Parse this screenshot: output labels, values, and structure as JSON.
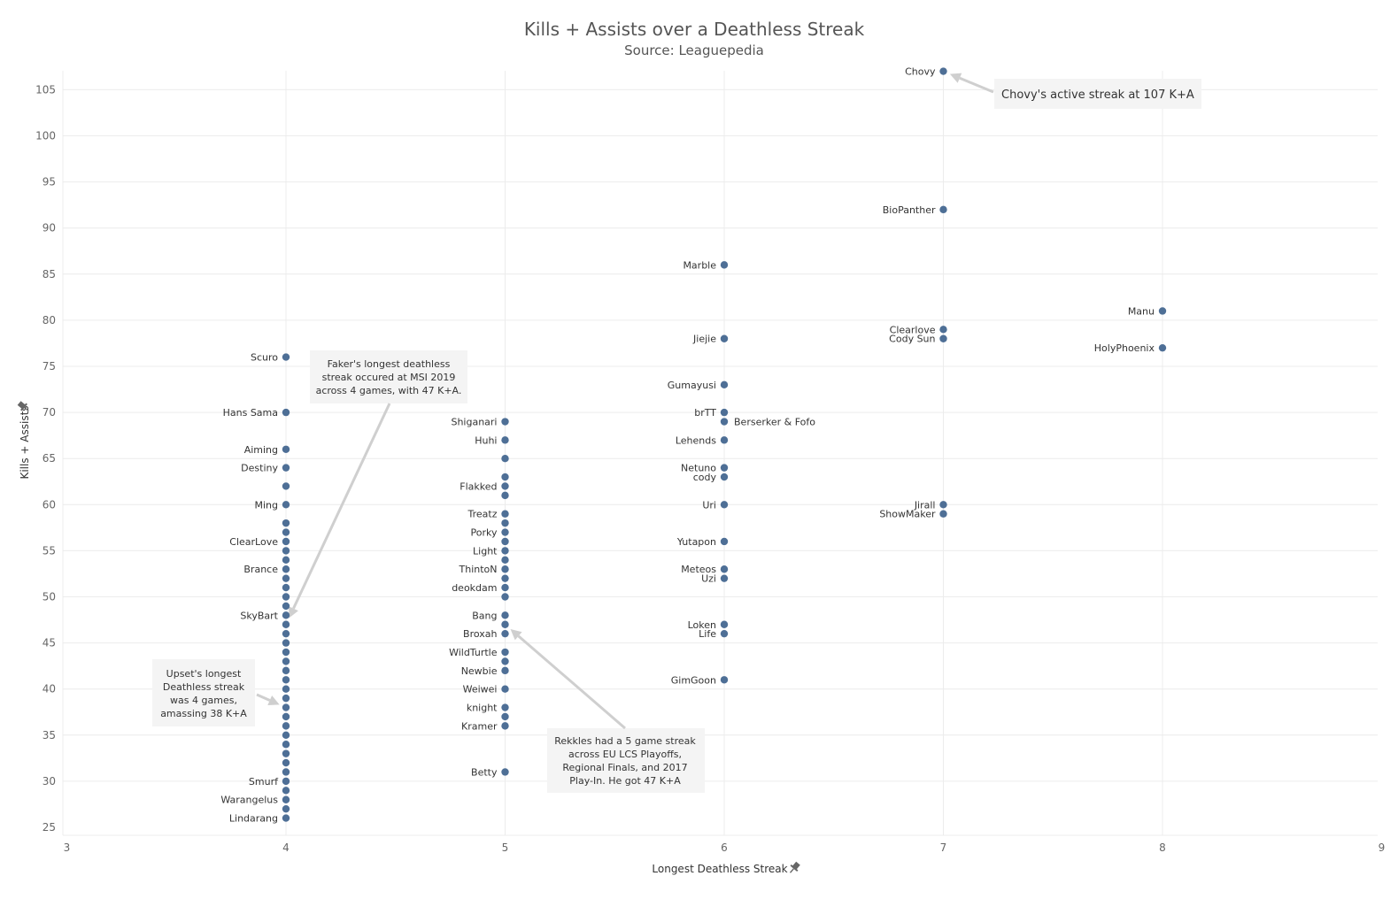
{
  "chart_data": {
    "type": "scatter",
    "title": "Kills + Assists over a Deathless Streak",
    "subtitle": "Source: Leaguepedia",
    "xlabel": "Longest Deathless Streak",
    "ylabel": "Kills + Assists",
    "xlim": [
      3,
      9
    ],
    "ylim": [
      24,
      107
    ],
    "xticks": [
      3,
      4,
      5,
      6,
      7,
      8,
      9
    ],
    "yticks": [
      25,
      30,
      35,
      40,
      45,
      50,
      55,
      60,
      65,
      70,
      75,
      80,
      85,
      90,
      95,
      100,
      105
    ],
    "grid": true,
    "point_color": "#4e6f96",
    "points": [
      {
        "x": 7,
        "y": 107,
        "label": "Chovy",
        "side": "left"
      },
      {
        "x": 7,
        "y": 92,
        "label": "BioPanther",
        "side": "left"
      },
      {
        "x": 6,
        "y": 86,
        "label": "Marble",
        "side": "left"
      },
      {
        "x": 8,
        "y": 81,
        "label": "Manu",
        "side": "left"
      },
      {
        "x": 7,
        "y": 79,
        "label": "Clearlove",
        "side": "left"
      },
      {
        "x": 7,
        "y": 78,
        "label": "Cody Sun",
        "side": "left"
      },
      {
        "x": 6,
        "y": 78,
        "label": "Jiejie",
        "side": "left"
      },
      {
        "x": 8,
        "y": 77,
        "label": "HolyPhoenix",
        "side": "left"
      },
      {
        "x": 4,
        "y": 76,
        "label": "Scuro",
        "side": "left"
      },
      {
        "x": 6,
        "y": 73,
        "label": "Gumayusi",
        "side": "left"
      },
      {
        "x": 4,
        "y": 70,
        "label": "Hans Sama",
        "side": "left"
      },
      {
        "x": 6,
        "y": 70,
        "label": "brTT",
        "side": "left"
      },
      {
        "x": 6,
        "y": 69,
        "label": "Berserker & Fofo",
        "side": "right"
      },
      {
        "x": 5,
        "y": 69,
        "label": "Shiganari",
        "side": "left"
      },
      {
        "x": 5,
        "y": 67,
        "label": "Huhi",
        "side": "left"
      },
      {
        "x": 6,
        "y": 67,
        "label": "Lehends",
        "side": "left"
      },
      {
        "x": 4,
        "y": 66,
        "label": "Aiming",
        "side": "left"
      },
      {
        "x": 5,
        "y": 65,
        "label": "",
        "side": "left"
      },
      {
        "x": 4,
        "y": 64,
        "label": "Destiny",
        "side": "left"
      },
      {
        "x": 6,
        "y": 64,
        "label": "Netuno",
        "side": "left"
      },
      {
        "x": 5,
        "y": 63,
        "label": "",
        "side": "left"
      },
      {
        "x": 6,
        "y": 63,
        "label": "cody",
        "side": "left"
      },
      {
        "x": 4,
        "y": 62,
        "label": "",
        "side": "left"
      },
      {
        "x": 5,
        "y": 62,
        "label": "Flakked",
        "side": "left"
      },
      {
        "x": 5,
        "y": 61,
        "label": "",
        "side": "left"
      },
      {
        "x": 4,
        "y": 60,
        "label": "Ming",
        "side": "left"
      },
      {
        "x": 6,
        "y": 60,
        "label": "Uri",
        "side": "left"
      },
      {
        "x": 7,
        "y": 60,
        "label": "Jirall",
        "side": "left"
      },
      {
        "x": 7,
        "y": 59,
        "label": "ShowMaker",
        "side": "left"
      },
      {
        "x": 5,
        "y": 59,
        "label": "Treatz",
        "side": "left"
      },
      {
        "x": 4,
        "y": 58,
        "label": "",
        "side": "left"
      },
      {
        "x": 5,
        "y": 58,
        "label": "",
        "side": "left"
      },
      {
        "x": 4,
        "y": 57,
        "label": "",
        "side": "left"
      },
      {
        "x": 5,
        "y": 57,
        "label": "Porky",
        "side": "left"
      },
      {
        "x": 4,
        "y": 56,
        "label": "ClearLove",
        "side": "left"
      },
      {
        "x": 5,
        "y": 56,
        "label": "",
        "side": "left"
      },
      {
        "x": 6,
        "y": 56,
        "label": "Yutapon",
        "side": "left"
      },
      {
        "x": 4,
        "y": 55,
        "label": "",
        "side": "left"
      },
      {
        "x": 5,
        "y": 55,
        "label": "Light",
        "side": "left"
      },
      {
        "x": 4,
        "y": 54,
        "label": "",
        "side": "left"
      },
      {
        "x": 5,
        "y": 54,
        "label": "",
        "side": "left"
      },
      {
        "x": 4,
        "y": 53,
        "label": "Brance",
        "side": "left"
      },
      {
        "x": 5,
        "y": 53,
        "label": "ThintoN",
        "side": "left"
      },
      {
        "x": 6,
        "y": 53,
        "label": "Meteos",
        "side": "left"
      },
      {
        "x": 4,
        "y": 52,
        "label": "",
        "side": "left"
      },
      {
        "x": 5,
        "y": 52,
        "label": "",
        "side": "left"
      },
      {
        "x": 6,
        "y": 52,
        "label": "Uzi",
        "side": "left"
      },
      {
        "x": 4,
        "y": 51,
        "label": "",
        "side": "left"
      },
      {
        "x": 5,
        "y": 51,
        "label": "deokdam",
        "side": "left"
      },
      {
        "x": 4,
        "y": 50,
        "label": "",
        "side": "left"
      },
      {
        "x": 5,
        "y": 50,
        "label": "",
        "side": "left"
      },
      {
        "x": 4,
        "y": 49,
        "label": "",
        "side": "left"
      },
      {
        "x": 4,
        "y": 48,
        "label": "SkyBart",
        "side": "left"
      },
      {
        "x": 5,
        "y": 48,
        "label": "Bang",
        "side": "left"
      },
      {
        "x": 4,
        "y": 47,
        "label": "",
        "side": "left"
      },
      {
        "x": 5,
        "y": 47,
        "label": "",
        "side": "left"
      },
      {
        "x": 6,
        "y": 47,
        "label": "Loken",
        "side": "left"
      },
      {
        "x": 4,
        "y": 46,
        "label": "",
        "side": "left"
      },
      {
        "x": 5,
        "y": 46,
        "label": "Broxah",
        "side": "left"
      },
      {
        "x": 6,
        "y": 46,
        "label": "Life",
        "side": "left"
      },
      {
        "x": 4,
        "y": 45,
        "label": "",
        "side": "left"
      },
      {
        "x": 4,
        "y": 44,
        "label": "",
        "side": "left"
      },
      {
        "x": 5,
        "y": 44,
        "label": "WildTurtle",
        "side": "left"
      },
      {
        "x": 4,
        "y": 43,
        "label": "",
        "side": "left"
      },
      {
        "x": 5,
        "y": 43,
        "label": "",
        "side": "left"
      },
      {
        "x": 4,
        "y": 42,
        "label": "",
        "side": "left"
      },
      {
        "x": 5,
        "y": 42,
        "label": "Newbie",
        "side": "left"
      },
      {
        "x": 4,
        "y": 41,
        "label": "",
        "side": "left"
      },
      {
        "x": 6,
        "y": 41,
        "label": "GimGoon",
        "side": "left"
      },
      {
        "x": 4,
        "y": 40,
        "label": "",
        "side": "left"
      },
      {
        "x": 5,
        "y": 40,
        "label": "Weiwei",
        "side": "left"
      },
      {
        "x": 4,
        "y": 39,
        "label": "",
        "side": "left"
      },
      {
        "x": 4,
        "y": 38,
        "label": "",
        "side": "left"
      },
      {
        "x": 5,
        "y": 38,
        "label": "knight",
        "side": "left"
      },
      {
        "x": 4,
        "y": 37,
        "label": "",
        "side": "left"
      },
      {
        "x": 5,
        "y": 37,
        "label": "",
        "side": "left"
      },
      {
        "x": 4,
        "y": 36,
        "label": "",
        "side": "left"
      },
      {
        "x": 5,
        "y": 36,
        "label": "Kramer",
        "side": "left"
      },
      {
        "x": 4,
        "y": 35,
        "label": "",
        "side": "left"
      },
      {
        "x": 4,
        "y": 34,
        "label": "",
        "side": "left"
      },
      {
        "x": 4,
        "y": 33,
        "label": "",
        "side": "left"
      },
      {
        "x": 4,
        "y": 32,
        "label": "",
        "side": "left"
      },
      {
        "x": 4,
        "y": 31,
        "label": "",
        "side": "left"
      },
      {
        "x": 5,
        "y": 31,
        "label": "Betty",
        "side": "left"
      },
      {
        "x": 4,
        "y": 30,
        "label": "Smurf",
        "side": "left"
      },
      {
        "x": 4,
        "y": 29,
        "label": "",
        "side": "left"
      },
      {
        "x": 4,
        "y": 28,
        "label": "Warangelus",
        "side": "left"
      },
      {
        "x": 4,
        "y": 27,
        "label": "",
        "side": "left"
      },
      {
        "x": 4,
        "y": 26,
        "label": "Lindarang",
        "side": "left"
      }
    ],
    "annotations": [
      {
        "id": "chovy",
        "lines": [
          "Chovy's active streak at 107 K+A"
        ],
        "target": {
          "x": 7,
          "y": 107
        }
      },
      {
        "id": "faker",
        "lines": [
          "Faker's longest deathless",
          "streak occured at MSI 2019",
          "across 4 games, with 47 K+A."
        ],
        "target": {
          "x": 4,
          "y": 47
        }
      },
      {
        "id": "upset",
        "lines": [
          "Upset's longest",
          "Deathless streak",
          "was 4 games,",
          "amassing 38 K+A"
        ],
        "target": {
          "x": 4,
          "y": 38
        }
      },
      {
        "id": "rekkles",
        "lines": [
          "Rekkles had a 5 game streak",
          "across EU LCS Playoffs,",
          "Regional Finals, and 2017",
          "Play-In. He got 47 K+A"
        ],
        "target": {
          "x": 5,
          "y": 47
        }
      }
    ]
  }
}
